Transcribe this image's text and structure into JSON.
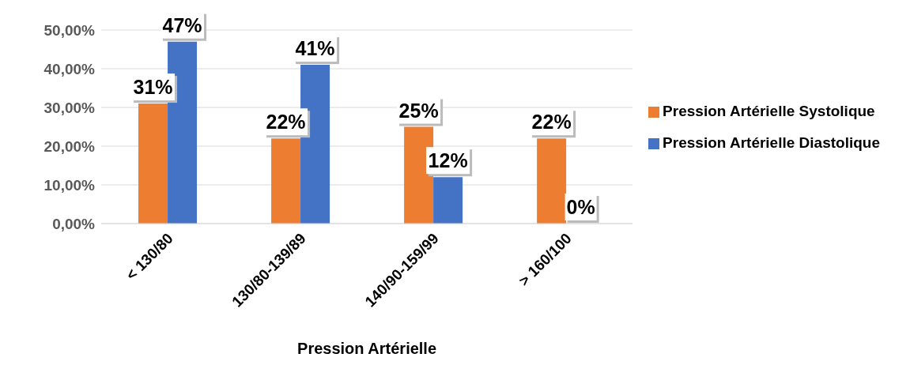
{
  "chart_data": {
    "type": "bar",
    "xlabel": "Pression Artérielle",
    "categories": [
      "< 130/80",
      "130/80-139/89",
      "140/90-159/99",
      "> 160/100"
    ],
    "series": [
      {
        "name": "Pression Artérielle Systolique",
        "color": "#ed7d31",
        "values": [
          31,
          22,
          25,
          22
        ],
        "value_labels": [
          "31%",
          "22%",
          "25%",
          "22%"
        ]
      },
      {
        "name": "Pression Artérielle Diastolique",
        "color": "#4472c4",
        "values": [
          47,
          41,
          12,
          0
        ],
        "value_labels": [
          "47%",
          "41%",
          "12%",
          "0%"
        ]
      }
    ],
    "ylim": [
      0,
      50
    ],
    "yticks": [
      {
        "value": 0,
        "label": "0,00%"
      },
      {
        "value": 10,
        "label": "10,00%"
      },
      {
        "value": 20,
        "label": "20,00%"
      },
      {
        "value": 30,
        "label": "30,00%"
      },
      {
        "value": 40,
        "label": "40,00%"
      },
      {
        "value": 50,
        "label": "50,00%"
      }
    ],
    "grid": "y",
    "legend": "right"
  }
}
